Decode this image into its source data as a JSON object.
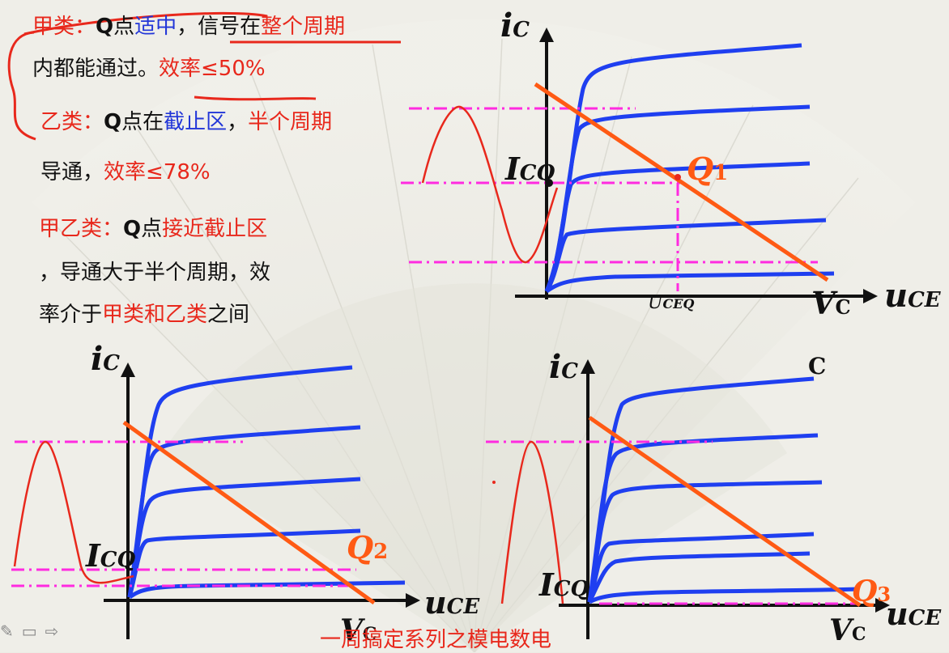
{
  "text": {
    "class_a": {
      "line1": [
        {
          "t": "甲类：",
          "c": "red"
        },
        {
          "t": "Q",
          "c": "blk",
          "b": true
        },
        {
          "t": "点",
          "c": "blk"
        },
        {
          "t": "适中",
          "c": "blue"
        },
        {
          "t": "，信号在",
          "c": "blk"
        },
        {
          "t": "整个周期",
          "c": "red"
        }
      ],
      "line2": [
        {
          "t": "内都能通过。",
          "c": "blk"
        },
        {
          "t": "效率≤50%",
          "c": "red"
        }
      ]
    },
    "class_b": {
      "line1": [
        {
          "t": "乙类：",
          "c": "red"
        },
        {
          "t": "Q",
          "c": "blk",
          "b": true
        },
        {
          "t": "点在",
          "c": "blk"
        },
        {
          "t": "截止区",
          "c": "blue"
        },
        {
          "t": "，",
          "c": "blk"
        },
        {
          "t": "半个周期",
          "c": "red"
        }
      ],
      "line2": [
        {
          "t": "导通，",
          "c": "blk"
        },
        {
          "t": "效率≤78%",
          "c": "red"
        }
      ]
    },
    "class_ab": {
      "line1": [
        {
          "t": "甲乙类：",
          "c": "red"
        },
        {
          "t": "Q",
          "c": "blk",
          "b": true
        },
        {
          "t": "点",
          "c": "blk"
        },
        {
          "t": "接近截止区",
          "c": "red"
        }
      ],
      "line2": [
        {
          "t": "，导通大于半个周期，效",
          "c": "blk"
        }
      ],
      "line3": [
        {
          "t": "率介于",
          "c": "blk"
        },
        {
          "t": "甲类和乙类",
          "c": "red"
        },
        {
          "t": "之间",
          "c": "blk"
        }
      ]
    }
  },
  "diagrams": {
    "d1": {
      "y_axis": "i",
      "y_sub": "C",
      "x_axis": "u",
      "x_sub": "CE",
      "icq": "I",
      "icq_sub": "CQ",
      "uceq": "U",
      "uceq_sub": "CEQ",
      "vc": "V",
      "vc_sub": "C",
      "q": "Q",
      "q_sub": "1"
    },
    "d2": {
      "y_axis": "i",
      "y_sub": "C",
      "x_axis": "u",
      "x_sub": "CE",
      "icq": "I",
      "icq_sub": "CQ",
      "vc": "V",
      "vc_sub": "C",
      "q": "Q",
      "q_sub": "2"
    },
    "d3": {
      "y_axis": "i",
      "y_sub": "C",
      "x_axis": "u",
      "x_sub": "CE",
      "icq": "I",
      "icq_sub": "CQ",
      "vc": "V",
      "vc_sub": "C",
      "q": "Q",
      "q_sub": "3",
      "top_mark": "C"
    }
  },
  "footer": "一周搞定系列之模电数电",
  "colors": {
    "red": "#e8281c",
    "blue": "#2236d8",
    "orange": "#ff5a14",
    "magenta": "#ff2be0",
    "curve": "#1f3ff0"
  }
}
